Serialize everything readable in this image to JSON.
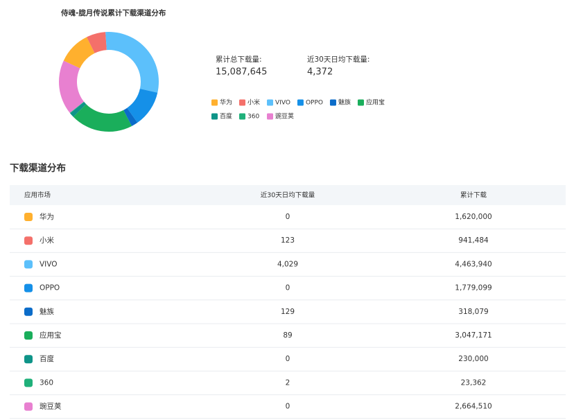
{
  "chart_data": {
    "type": "pie",
    "title": "侍魂-胧月传说累计下载渠道分布",
    "categories": [
      "华为",
      "小米",
      "VIVO",
      "OPPO",
      "魅族",
      "应用宝",
      "百度",
      "360",
      "豌豆荚"
    ],
    "values": [
      1620000,
      941484,
      4463940,
      1779099,
      318079,
      3047171,
      230000,
      23362,
      2664510
    ],
    "colors": [
      "#ffb02e",
      "#f4706a",
      "#5cc0fb",
      "#1590e8",
      "#0b6cc9",
      "#1aae5b",
      "#0e9488",
      "#1fb07a",
      "#e880d0"
    ],
    "donut": true
  },
  "stats": [
    {
      "label": "累计总下载量:",
      "value": "15,087,645"
    },
    {
      "label": "近30天日均下载量:",
      "value": "4,372"
    }
  ],
  "section_title": "下载渠道分布",
  "table": {
    "headers": [
      "应用市场",
      "近30天日均下载量",
      "累计下载"
    ],
    "rows": [
      [
        "华为",
        "0",
        "1,620,000"
      ],
      [
        "小米",
        "123",
        "941,484"
      ],
      [
        "VIVO",
        "4,029",
        "4,463,940"
      ],
      [
        "OPPO",
        "0",
        "1,779,099"
      ],
      [
        "魅族",
        "129",
        "318,079"
      ],
      [
        "应用宝",
        "89",
        "3,047,171"
      ],
      [
        "百度",
        "0",
        "230,000"
      ],
      [
        "360",
        "2",
        "23,362"
      ],
      [
        "豌豆荚",
        "0",
        "2,664,510"
      ]
    ]
  }
}
